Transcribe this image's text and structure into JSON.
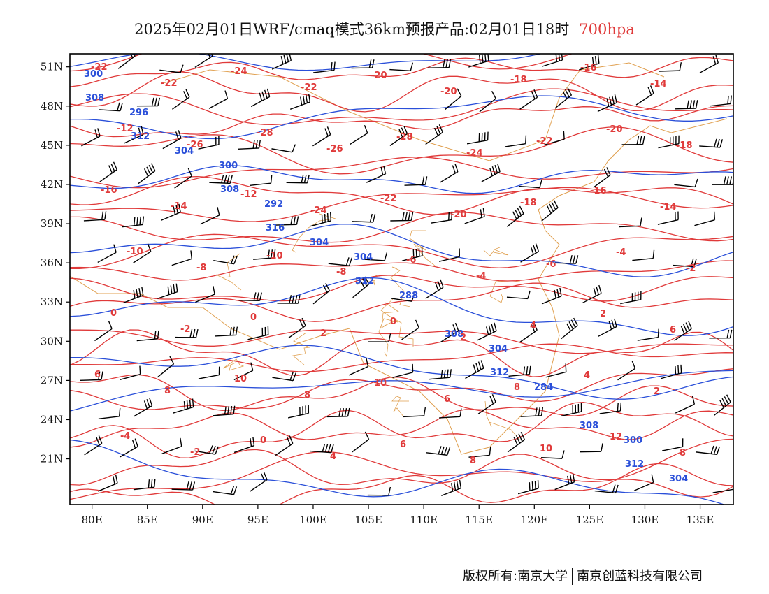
{
  "title": {
    "main": "2025年02月01日WRF/cmaq模式36km预报产品:02月01日18时",
    "level": "700hpa"
  },
  "copyright": {
    "owner": "版权所有:南京大学",
    "company": "南京创蓝科技有限公司"
  },
  "colors": {
    "height_contour": "#2a4fd9",
    "temperature_contour": "#e03a3a",
    "boundary": "#e0a050",
    "wind_barb": "#000000",
    "frame": "#000000"
  },
  "map": {
    "lon_range": [
      78,
      138
    ],
    "lat_range": [
      17.5,
      52
    ],
    "lon_ticks": [
      "80E",
      "85E",
      "90E",
      "95E",
      "100E",
      "105E",
      "110E",
      "115E",
      "120E",
      "125E",
      "130E",
      "135E"
    ],
    "lat_ticks": [
      "51N",
      "48N",
      "45N",
      "42N",
      "39N",
      "36N",
      "33N",
      "30N",
      "27N",
      "24N",
      "21N"
    ],
    "height_labels": [
      "300",
      "300",
      "304",
      "304",
      "300",
      "296",
      "292",
      "288",
      "284",
      "304",
      "304",
      "304",
      "308",
      "308",
      "308",
      "308",
      "312",
      "312",
      "312",
      "312",
      "316"
    ],
    "temperature_labels": [
      "-22",
      "-22",
      "-24",
      "-22",
      "-20",
      "-20",
      "-18",
      "-16",
      "-14",
      "-12",
      "-26",
      "-28",
      "-26",
      "-28",
      "-24",
      "-22",
      "-20",
      "-18",
      "-16",
      "-14",
      "-12",
      "-24",
      "-22",
      "-20",
      "-18",
      "-16",
      "-14",
      "-10",
      "-8",
      "-10",
      "-8",
      "-6",
      "-4",
      "-6",
      "-4",
      "-2",
      "0",
      "-2",
      "0",
      "2",
      "0",
      "2",
      "4",
      "2",
      "6",
      "6",
      "8",
      "10",
      "8",
      "10",
      "6",
      "8",
      "4",
      "2",
      "-4",
      "-2",
      "0",
      "4",
      "6",
      "8",
      "10",
      "12",
      "8"
    ]
  }
}
